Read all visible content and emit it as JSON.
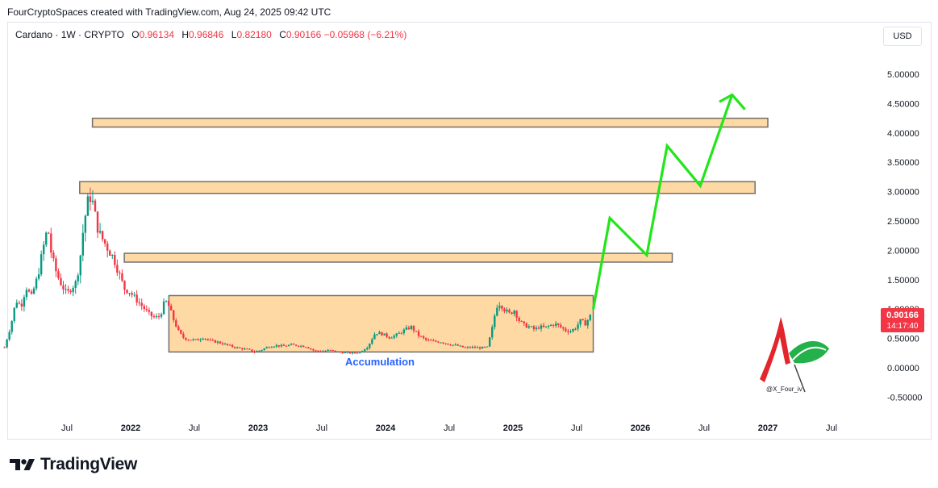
{
  "header": {
    "text": "FourCryptoSpaces created with TradingView.com, Aug 24, 2025 09:42 UTC"
  },
  "legend": {
    "symbol": "Cardano · 1W · CRYPTO",
    "o_label": "O",
    "o_value": "0.96134",
    "h_label": "H",
    "h_value": "0.96846",
    "l_label": "L",
    "l_value": "0.82180",
    "c_label": "C",
    "c_value": "0.90166",
    "change": "−0.05968 (−6.21%)"
  },
  "currency_button": "USD",
  "price_tag": {
    "price": "0.90166",
    "countdown": "14:17:40",
    "color": "#f23645"
  },
  "annotation": {
    "accumulation": "Accumulation",
    "accumulation_color": "#2962ff"
  },
  "watermark": {
    "handle": "@X_Four_iv"
  },
  "brand": {
    "name": "TradingView"
  },
  "colors": {
    "up": "#089981",
    "down": "#f23645",
    "zone_fill": "#ffd9a3",
    "zone_stroke": "#6f6f6f",
    "projection": "#22e51a"
  },
  "chart_data": {
    "type": "candlestick",
    "y_ticks": [
      "5.00000",
      "4.50000",
      "4.00000",
      "3.50000",
      "3.00000",
      "2.50000",
      "2.00000",
      "1.50000",
      "1.00000",
      "0.50000",
      "0.00000",
      "-0.50000"
    ],
    "x_ticks": [
      {
        "label": "Jul",
        "t": 2021.5,
        "bold": false
      },
      {
        "label": "2022",
        "t": 2022.0,
        "bold": true
      },
      {
        "label": "Jul",
        "t": 2022.5,
        "bold": false
      },
      {
        "label": "2023",
        "t": 2023.0,
        "bold": true
      },
      {
        "label": "Jul",
        "t": 2023.5,
        "bold": false
      },
      {
        "label": "2024",
        "t": 2024.0,
        "bold": true
      },
      {
        "label": "Jul",
        "t": 2024.5,
        "bold": false
      },
      {
        "label": "2025",
        "t": 2025.0,
        "bold": true
      },
      {
        "label": "Jul",
        "t": 2025.5,
        "bold": false
      },
      {
        "label": "2026",
        "t": 2026.0,
        "bold": true
      },
      {
        "label": "Jul",
        "t": 2026.5,
        "bold": false
      },
      {
        "label": "2027",
        "t": 2027.0,
        "bold": true
      },
      {
        "label": "Jul",
        "t": 2027.5,
        "bold": false
      }
    ],
    "price_path": [
      [
        2021.01,
        0.35
      ],
      [
        2021.06,
        0.72
      ],
      [
        2021.1,
        1.15
      ],
      [
        2021.14,
        1.05
      ],
      [
        2021.18,
        1.38
      ],
      [
        2021.22,
        1.2
      ],
      [
        2021.27,
        1.55
      ],
      [
        2021.31,
        2.0
      ],
      [
        2021.35,
        2.4
      ],
      [
        2021.38,
        1.9
      ],
      [
        2021.42,
        1.6
      ],
      [
        2021.45,
        1.45
      ],
      [
        2021.5,
        1.25
      ],
      [
        2021.53,
        1.35
      ],
      [
        2021.57,
        1.45
      ],
      [
        2021.6,
        1.8
      ],
      [
        2021.63,
        2.4
      ],
      [
        2021.66,
        2.8
      ],
      [
        2021.69,
        2.95
      ],
      [
        2021.72,
        2.6
      ],
      [
        2021.75,
        2.3
      ],
      [
        2021.79,
        2.15
      ],
      [
        2021.83,
        2.0
      ],
      [
        2021.87,
        1.85
      ],
      [
        2021.91,
        1.6
      ],
      [
        2021.95,
        1.35
      ],
      [
        2021.99,
        1.3
      ],
      [
        2022.03,
        1.2
      ],
      [
        2022.07,
        1.1
      ],
      [
        2022.11,
        1.0
      ],
      [
        2022.15,
        0.9
      ],
      [
        2022.19,
        0.85
      ],
      [
        2022.23,
        0.88
      ],
      [
        2022.27,
        1.15
      ],
      [
        2022.3,
        1.05
      ],
      [
        2022.34,
        0.8
      ],
      [
        2022.38,
        0.6
      ],
      [
        2022.42,
        0.5
      ],
      [
        2022.47,
        0.48
      ],
      [
        2022.52,
        0.47
      ],
      [
        2022.57,
        0.52
      ],
      [
        2022.62,
        0.46
      ],
      [
        2022.68,
        0.44
      ],
      [
        2022.74,
        0.4
      ],
      [
        2022.8,
        0.36
      ],
      [
        2022.86,
        0.33
      ],
      [
        2022.92,
        0.31
      ],
      [
        2022.97,
        0.27
      ],
      [
        2023.02,
        0.3
      ],
      [
        2023.08,
        0.36
      ],
      [
        2023.14,
        0.38
      ],
      [
        2023.2,
        0.37
      ],
      [
        2023.26,
        0.39
      ],
      [
        2023.32,
        0.38
      ],
      [
        2023.38,
        0.36
      ],
      [
        2023.44,
        0.29
      ],
      [
        2023.5,
        0.28
      ],
      [
        2023.56,
        0.3
      ],
      [
        2023.62,
        0.27
      ],
      [
        2023.68,
        0.26
      ],
      [
        2023.74,
        0.25
      ],
      [
        2023.8,
        0.27
      ],
      [
        2023.86,
        0.36
      ],
      [
        2023.92,
        0.6
      ],
      [
        2023.97,
        0.58
      ],
      [
        2024.03,
        0.52
      ],
      [
        2024.08,
        0.55
      ],
      [
        2024.14,
        0.63
      ],
      [
        2024.2,
        0.7
      ],
      [
        2024.26,
        0.55
      ],
      [
        2024.32,
        0.47
      ],
      [
        2024.38,
        0.45
      ],
      [
        2024.44,
        0.44
      ],
      [
        2024.5,
        0.4
      ],
      [
        2024.56,
        0.38
      ],
      [
        2024.62,
        0.34
      ],
      [
        2024.68,
        0.35
      ],
      [
        2024.74,
        0.34
      ],
      [
        2024.8,
        0.35
      ],
      [
        2024.84,
        0.7
      ],
      [
        2024.87,
        1.05
      ],
      [
        2024.9,
        1.1
      ],
      [
        2024.93,
        1.0
      ],
      [
        2024.97,
        0.92
      ],
      [
        2025.01,
        0.98
      ],
      [
        2025.05,
        0.8
      ],
      [
        2025.09,
        0.72
      ],
      [
        2025.13,
        0.7
      ],
      [
        2025.17,
        0.65
      ],
      [
        2025.21,
        0.7
      ],
      [
        2025.25,
        0.68
      ],
      [
        2025.29,
        0.72
      ],
      [
        2025.33,
        0.75
      ],
      [
        2025.37,
        0.7
      ],
      [
        2025.41,
        0.64
      ],
      [
        2025.45,
        0.62
      ],
      [
        2025.49,
        0.68
      ],
      [
        2025.53,
        0.8
      ],
      [
        2025.57,
        0.75
      ],
      [
        2025.61,
        0.9
      ]
    ],
    "zones": [
      {
        "t0": 2021.7,
        "t1": 2027.0,
        "low": 4.1,
        "high": 4.25
      },
      {
        "t0": 2021.6,
        "t1": 2026.9,
        "low": 2.97,
        "high": 3.17
      },
      {
        "t0": 2021.95,
        "t1": 2026.25,
        "low": 1.8,
        "high": 1.95
      },
      {
        "t0": 2022.3,
        "t1": 2025.63,
        "low": 0.27,
        "high": 1.23
      }
    ],
    "projection": [
      [
        2025.63,
        1.0
      ],
      [
        2025.76,
        2.55
      ],
      [
        2026.05,
        1.92
      ],
      [
        2026.21,
        3.78
      ],
      [
        2026.47,
        3.1
      ],
      [
        2026.72,
        4.65
      ]
    ],
    "projection_arrowhead": [
      [
        2026.62,
        4.53
      ],
      [
        2026.72,
        4.65
      ],
      [
        2026.82,
        4.4
      ]
    ]
  }
}
